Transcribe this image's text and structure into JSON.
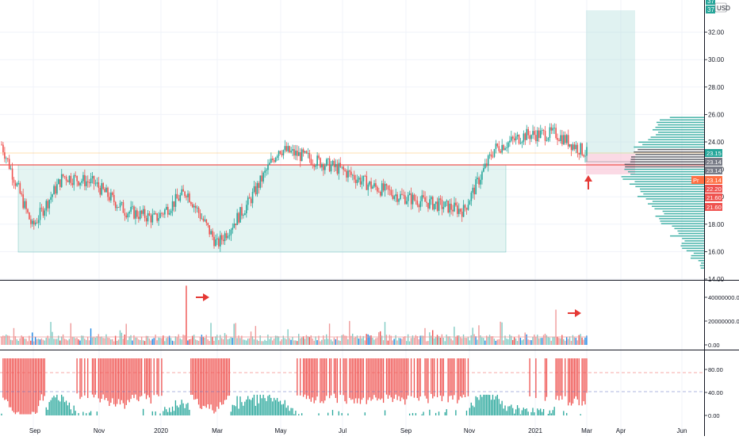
{
  "currency": "USD",
  "top_clipped_badges": [
    "37",
    "37"
  ],
  "price_axis": {
    "ticks": [
      "14.00",
      "16.00",
      "18.00",
      "20.00",
      "22.00",
      "24.00",
      "26.00",
      "28.00",
      "30.00",
      "32.00"
    ],
    "badges": [
      {
        "text": "23.15",
        "color": "#26a69a"
      },
      {
        "text": "23.14",
        "color": "#787b86"
      },
      {
        "text": "23.14",
        "color": "#787b86"
      },
      {
        "text": "Pr... 23.14",
        "prefix": "Pr",
        "value": "23.14",
        "color": "#ff7043"
      },
      {
        "text": "22.20",
        "color": "#ef5350"
      },
      {
        "text": "21.60",
        "color": "#ef5350"
      },
      {
        "text": "21.60",
        "color": "#ef5350"
      }
    ]
  },
  "volume_axis": {
    "ticks": [
      "40000000.00",
      "20000000.00",
      "0.00"
    ]
  },
  "oscillator_axis": {
    "ticks": [
      "80.00",
      "60.00",
      "40.00",
      "20.00",
      "0.00"
    ]
  },
  "time_axis": {
    "labels": [
      "Sep",
      "Nov",
      "2020",
      "Mar",
      "May",
      "Jul",
      "Sep",
      "Nov",
      "2021",
      "Mar",
      "Apr",
      "Jun"
    ]
  },
  "colors": {
    "up": "#26a69a",
    "down": "#ef5350",
    "range_fill": "#b2dfdb",
    "target_fill": "#b2dfdb",
    "stop_fill": "#f8bbd0",
    "resistance_line": "#ef5350",
    "annotation_arrow": "#e53935",
    "grid": "#f0f3fa",
    "axis_text": "#131722"
  },
  "chart_data": {
    "type": "candlestick",
    "symbol_currency": "USD",
    "x_range": [
      "2019-08",
      "2021-06"
    ],
    "price_ylim": [
      14,
      33.5
    ],
    "price_path_approx": [
      {
        "date": "2019-08",
        "price": 23.8
      },
      {
        "date": "2019-09",
        "price": 17.8
      },
      {
        "date": "2019-10",
        "price": 21.5
      },
      {
        "date": "2019-11",
        "price": 21.0
      },
      {
        "date": "2019-12",
        "price": 19.0
      },
      {
        "date": "2020-01",
        "price": 18.4
      },
      {
        "date": "2020-02",
        "price": 20.4
      },
      {
        "date": "2020-03",
        "price": 16.5
      },
      {
        "date": "2020-04",
        "price": 19.5
      },
      {
        "date": "2020-05",
        "price": 23.5
      },
      {
        "date": "2020-06",
        "price": 22.8
      },
      {
        "date": "2020-07",
        "price": 22.0
      },
      {
        "date": "2020-08",
        "price": 20.8
      },
      {
        "date": "2020-09",
        "price": 20.0
      },
      {
        "date": "2020-10",
        "price": 19.5
      },
      {
        "date": "2020-11",
        "price": 19.0
      },
      {
        "date": "2020-12",
        "price": 23.5
      },
      {
        "date": "2021-01",
        "price": 24.5
      },
      {
        "date": "2021-02",
        "price": 24.6
      },
      {
        "date": "2021-03",
        "price": 23.14
      }
    ],
    "drawings": {
      "range_box": {
        "price_low": 16.0,
        "price_high": 23.0,
        "from": "2019-08",
        "to": "2020-12"
      },
      "horizontal_line": {
        "price": 23.0
      },
      "long_position": {
        "entry": 23.14,
        "stop": 22.2,
        "target": 33.3
      }
    },
    "volume_ylim": [
      0,
      45000000
    ],
    "volume_spikes": [
      {
        "date": "2020-02",
        "value": 42000000
      },
      {
        "date": "2021-02",
        "value": 25000000
      }
    ],
    "oscillator_ylim": [
      -5,
      105
    ],
    "oscillator_levels": [
      80,
      40
    ]
  }
}
